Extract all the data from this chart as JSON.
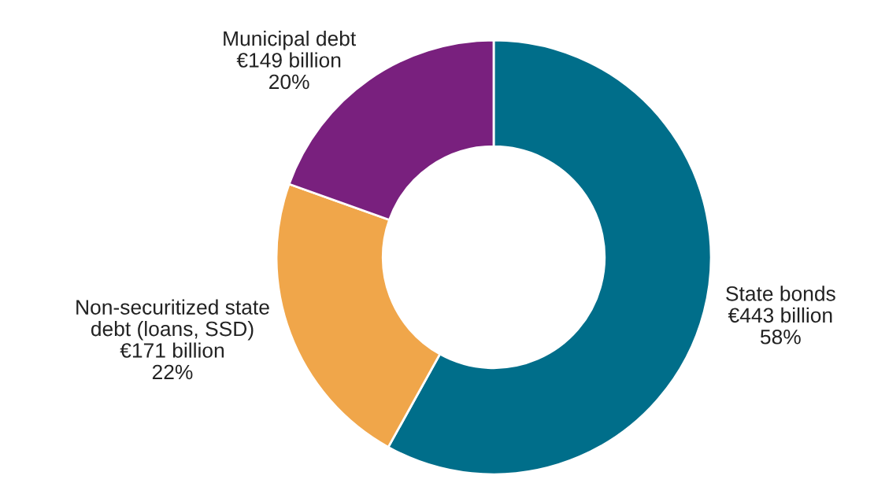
{
  "chart_data": {
    "type": "donut",
    "categories": [
      "State bonds",
      "Non-securitized state\ndebt (loans, SSD)",
      "Municipal debt"
    ],
    "values": [
      443,
      171,
      149
    ],
    "value_labels": [
      "€443 billion",
      "€171 billion",
      "€149 billion"
    ],
    "annotations": [
      "58%",
      "22%",
      "20%"
    ],
    "colors": [
      "#006e8a",
      "#f0a64a",
      "#79207e"
    ]
  }
}
